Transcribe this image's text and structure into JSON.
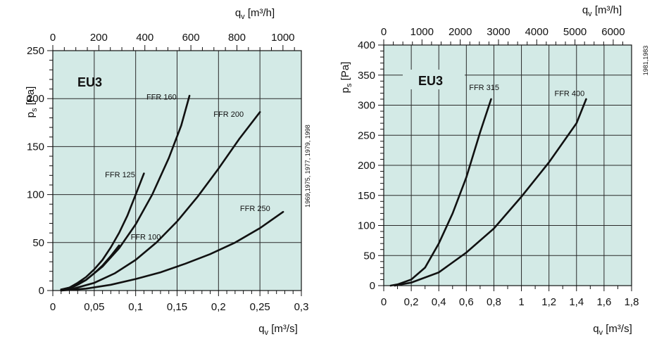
{
  "chart_data": [
    {
      "type": "line",
      "brand": "EU3",
      "side_note": "1969,1975, 1977, 1979, 1998",
      "x_axis": {
        "unit_base": "q",
        "unit_sub": "v",
        "unit_rest": " [m³/s]",
        "range": [
          0,
          0.3
        ],
        "ticks": [
          0,
          0.05,
          0.1,
          0.15,
          0.2,
          0.25,
          0.3
        ],
        "tick_labels": [
          "0",
          "0,05",
          "0,1",
          "0,15",
          "0,2",
          "0,25",
          "0,3"
        ]
      },
      "x2_axis": {
        "unit_base": "q",
        "unit_sub": "v",
        "unit_rest": " [m³/h]",
        "range": [
          0,
          1080
        ],
        "ticks": [
          0,
          200,
          400,
          600,
          800,
          1000
        ],
        "tick_labels": [
          "0",
          "200",
          "400",
          "600",
          "800",
          "1000"
        ]
      },
      "y_axis": {
        "unit_base": "p",
        "unit_sub": "s",
        "unit_rest": " [Pa]",
        "range": [
          0,
          250
        ],
        "ticks": [
          0,
          50,
          100,
          150,
          200,
          250
        ],
        "tick_labels": [
          "0",
          "50",
          "100",
          "150",
          "200",
          "250"
        ]
      },
      "grid": true,
      "series": [
        {
          "name": "FFR 125",
          "points": [
            [
              0.01,
              1
            ],
            [
              0.02,
              3
            ],
            [
              0.03,
              8
            ],
            [
              0.04,
              14
            ],
            [
              0.05,
              22
            ],
            [
              0.06,
              32
            ],
            [
              0.07,
              45
            ],
            [
              0.08,
              60
            ],
            [
              0.09,
              78
            ],
            [
              0.1,
              100
            ],
            [
              0.11,
              122
            ]
          ]
        },
        {
          "name": "FFR 100",
          "points": [
            [
              0.01,
              1
            ],
            [
              0.02,
              2
            ],
            [
              0.03,
              6
            ],
            [
              0.04,
              11
            ],
            [
              0.05,
              18
            ],
            [
              0.06,
              26
            ],
            [
              0.07,
              36
            ],
            [
              0.08,
              47
            ]
          ]
        },
        {
          "name": "FFR 160",
          "points": [
            [
              0.01,
              1
            ],
            [
              0.02,
              3
            ],
            [
              0.04,
              11
            ],
            [
              0.06,
              25
            ],
            [
              0.08,
              44
            ],
            [
              0.1,
              69
            ],
            [
              0.12,
              100
            ],
            [
              0.14,
              138
            ],
            [
              0.155,
              172
            ],
            [
              0.165,
              203
            ]
          ]
        },
        {
          "name": "FFR 200",
          "points": [
            [
              0.01,
              0
            ],
            [
              0.025,
              2
            ],
            [
              0.05,
              8
            ],
            [
              0.075,
              18
            ],
            [
              0.1,
              32
            ],
            [
              0.125,
              50
            ],
            [
              0.15,
              72
            ],
            [
              0.175,
              98
            ],
            [
              0.2,
              127
            ],
            [
              0.225,
              158
            ],
            [
              0.25,
              186
            ]
          ]
        },
        {
          "name": "FFR 250",
          "points": [
            [
              0.01,
              0
            ],
            [
              0.04,
              2
            ],
            [
              0.07,
              6
            ],
            [
              0.1,
              12
            ],
            [
              0.13,
              19
            ],
            [
              0.16,
              28
            ],
            [
              0.19,
              38
            ],
            [
              0.22,
              50
            ],
            [
              0.25,
              65
            ],
            [
              0.278,
              82
            ]
          ]
        }
      ],
      "labels": [
        {
          "text": "FFR 125",
          "x": 0.063,
          "y": 118
        },
        {
          "text": "FFR 160",
          "x": 0.113,
          "y": 199
        },
        {
          "text": "FFR 200",
          "x": 0.194,
          "y": 181
        },
        {
          "text": "FFR 250",
          "x": 0.226,
          "y": 83
        },
        {
          "text": "FFR 100",
          "x": 0.094,
          "y": 53
        }
      ]
    },
    {
      "type": "line",
      "brand": "EU3",
      "side_note": "1981,1983",
      "x_axis": {
        "unit_base": "q",
        "unit_sub": "v",
        "unit_rest": " [m³/s]",
        "range": [
          0,
          1.8
        ],
        "ticks": [
          0,
          0.2,
          0.4,
          0.6,
          0.8,
          1,
          1.2,
          1.4,
          1.6,
          1.8
        ],
        "tick_labels": [
          "0",
          "0,2",
          "0,4",
          "0,6",
          "0,8",
          "1",
          "1,2",
          "1,4",
          "1,6",
          "1,8"
        ]
      },
      "x2_axis": {
        "unit_base": "q",
        "unit_sub": "v",
        "unit_rest": " [m³/h]",
        "range": [
          0,
          6480
        ],
        "ticks": [
          0,
          1000,
          2000,
          3000,
          4000,
          5000,
          6000
        ],
        "tick_labels": [
          "0",
          "1000",
          "2000",
          "3000",
          "4000",
          "5000",
          "6000"
        ]
      },
      "y_axis": {
        "unit_base": "p",
        "unit_sub": "s",
        "unit_rest": " [Pa]",
        "range": [
          0,
          400
        ],
        "ticks": [
          0,
          50,
          100,
          150,
          200,
          250,
          300,
          350,
          400
        ],
        "tick_labels": [
          "0",
          "50",
          "100",
          "150",
          "200",
          "250",
          "300",
          "350",
          "400"
        ]
      },
      "grid": true,
      "series": [
        {
          "name": "FFR 315",
          "points": [
            [
              0.05,
              0
            ],
            [
              0.1,
              2
            ],
            [
              0.2,
              10
            ],
            [
              0.3,
              30
            ],
            [
              0.4,
              70
            ],
            [
              0.5,
              120
            ],
            [
              0.6,
              180
            ],
            [
              0.7,
              255
            ],
            [
              0.78,
              310
            ]
          ]
        },
        {
          "name": "FFR 400",
          "points": [
            [
              0.08,
              0
            ],
            [
              0.2,
              5
            ],
            [
              0.4,
              22
            ],
            [
              0.6,
              55
            ],
            [
              0.8,
              95
            ],
            [
              1,
              148
            ],
            [
              1.2,
              205
            ],
            [
              1.4,
              270
            ],
            [
              1.47,
              310
            ]
          ]
        }
      ],
      "labels": [
        {
          "text": "FFR 315",
          "x": 0.62,
          "y": 325
        },
        {
          "text": "FFR 400",
          "x": 1.24,
          "y": 315
        }
      ]
    }
  ]
}
